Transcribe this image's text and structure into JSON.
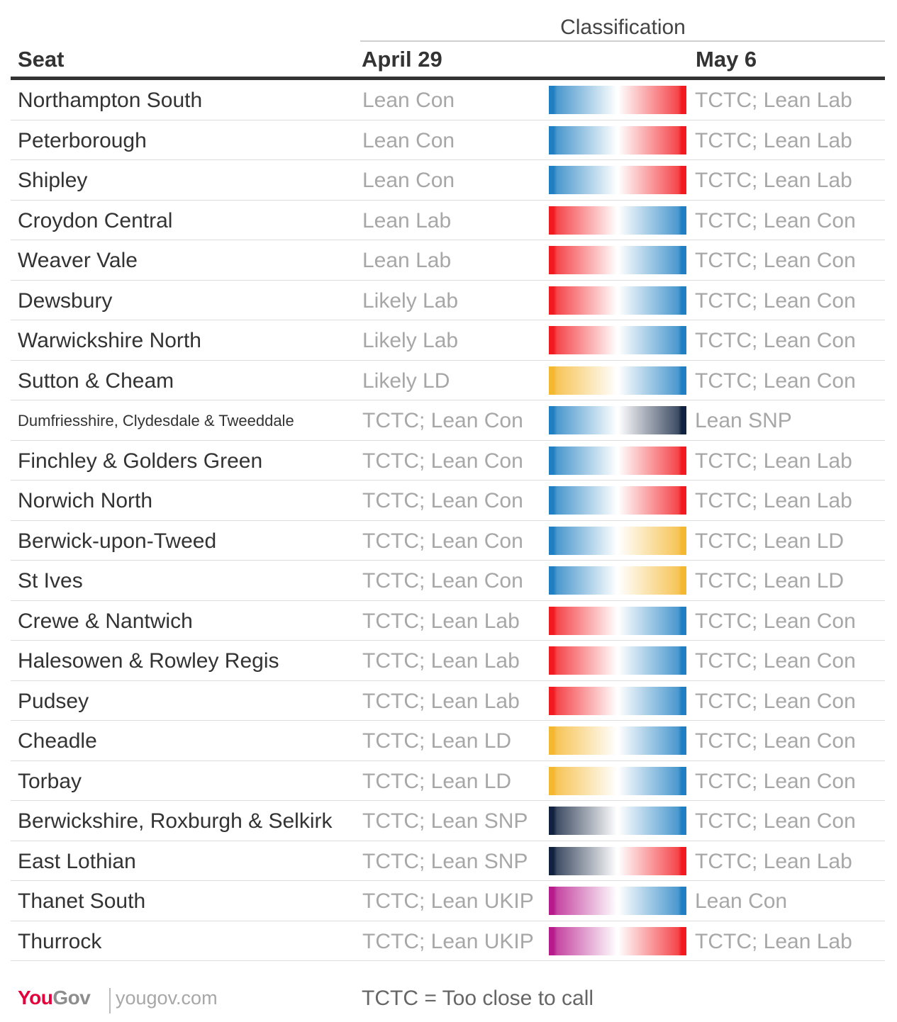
{
  "headers": {
    "classification": "Classification",
    "seat": "Seat",
    "april": "April 29",
    "may": "May 6"
  },
  "colors": {
    "Con": "#1f7fc2",
    "Lab": "#f2191f",
    "LD": "#f4b730",
    "SNP": "#10223f",
    "UKIP": "#b71a8b"
  },
  "chart_data": {
    "type": "table",
    "columns": [
      "Seat",
      "April 29",
      "May 6"
    ],
    "rows": [
      {
        "seat": "Northampton South",
        "april": "Lean Con",
        "may": "TCTC; Lean Lab",
        "from_party": "Con",
        "to_party": "Lab"
      },
      {
        "seat": "Peterborough",
        "april": "Lean Con",
        "may": "TCTC; Lean Lab",
        "from_party": "Con",
        "to_party": "Lab"
      },
      {
        "seat": "Shipley",
        "april": "Lean Con",
        "may": "TCTC; Lean Lab",
        "from_party": "Con",
        "to_party": "Lab"
      },
      {
        "seat": "Croydon Central",
        "april": "Lean Lab",
        "may": "TCTC; Lean Con",
        "from_party": "Lab",
        "to_party": "Con"
      },
      {
        "seat": "Weaver Vale",
        "april": "Lean Lab",
        "may": "TCTC; Lean Con",
        "from_party": "Lab",
        "to_party": "Con"
      },
      {
        "seat": "Dewsbury",
        "april": "Likely Lab",
        "may": "TCTC; Lean Con",
        "from_party": "Lab",
        "to_party": "Con"
      },
      {
        "seat": "Warwickshire North",
        "april": "Likely Lab",
        "may": "TCTC; Lean Con",
        "from_party": "Lab",
        "to_party": "Con"
      },
      {
        "seat": "Sutton & Cheam",
        "april": "Likely LD",
        "may": "TCTC; Lean Con",
        "from_party": "LD",
        "to_party": "Con"
      },
      {
        "seat": "Dumfriesshire, Clydesdale & Tweeddale",
        "april": "TCTC; Lean Con",
        "may": "Lean SNP",
        "from_party": "Con",
        "to_party": "SNP",
        "small": true
      },
      {
        "seat": "Finchley & Golders Green",
        "april": "TCTC; Lean Con",
        "may": "TCTC; Lean Lab",
        "from_party": "Con",
        "to_party": "Lab"
      },
      {
        "seat": "Norwich North",
        "april": "TCTC; Lean Con",
        "may": "TCTC; Lean Lab",
        "from_party": "Con",
        "to_party": "Lab"
      },
      {
        "seat": "Berwick-upon-Tweed",
        "april": "TCTC; Lean Con",
        "may": "TCTC; Lean LD",
        "from_party": "Con",
        "to_party": "LD"
      },
      {
        "seat": "St Ives",
        "april": "TCTC; Lean Con",
        "may": "TCTC; Lean LD",
        "from_party": "Con",
        "to_party": "LD"
      },
      {
        "seat": "Crewe & Nantwich",
        "april": "TCTC; Lean Lab",
        "may": "TCTC; Lean Con",
        "from_party": "Lab",
        "to_party": "Con"
      },
      {
        "seat": "Halesowen & Rowley Regis",
        "april": "TCTC; Lean Lab",
        "may": "TCTC; Lean Con",
        "from_party": "Lab",
        "to_party": "Con"
      },
      {
        "seat": "Pudsey",
        "april": "TCTC; Lean Lab",
        "may": "TCTC; Lean Con",
        "from_party": "Lab",
        "to_party": "Con"
      },
      {
        "seat": "Cheadle",
        "april": "TCTC; Lean LD",
        "may": "TCTC; Lean Con",
        "from_party": "LD",
        "to_party": "Con"
      },
      {
        "seat": "Torbay",
        "april": "TCTC; Lean LD",
        "may": "TCTC; Lean Con",
        "from_party": "LD",
        "to_party": "Con"
      },
      {
        "seat": "Berwickshire, Roxburgh & Selkirk",
        "april": "TCTC; Lean SNP",
        "may": "TCTC; Lean Con",
        "from_party": "SNP",
        "to_party": "Con"
      },
      {
        "seat": "East Lothian",
        "april": "TCTC; Lean SNP",
        "may": "TCTC; Lean Lab",
        "from_party": "SNP",
        "to_party": "Lab"
      },
      {
        "seat": "Thanet South",
        "april": "TCTC; Lean UKIP",
        "may": "Lean Con",
        "from_party": "UKIP",
        "to_party": "Con"
      },
      {
        "seat": "Thurrock",
        "april": "TCTC; Lean UKIP",
        "may": "TCTC; Lean Lab",
        "from_party": "UKIP",
        "to_party": "Lab"
      }
    ]
  },
  "footer": {
    "logo_you": "You",
    "logo_gov": "Gov",
    "url": "yougov.com",
    "note": "TCTC = Too close to call"
  }
}
